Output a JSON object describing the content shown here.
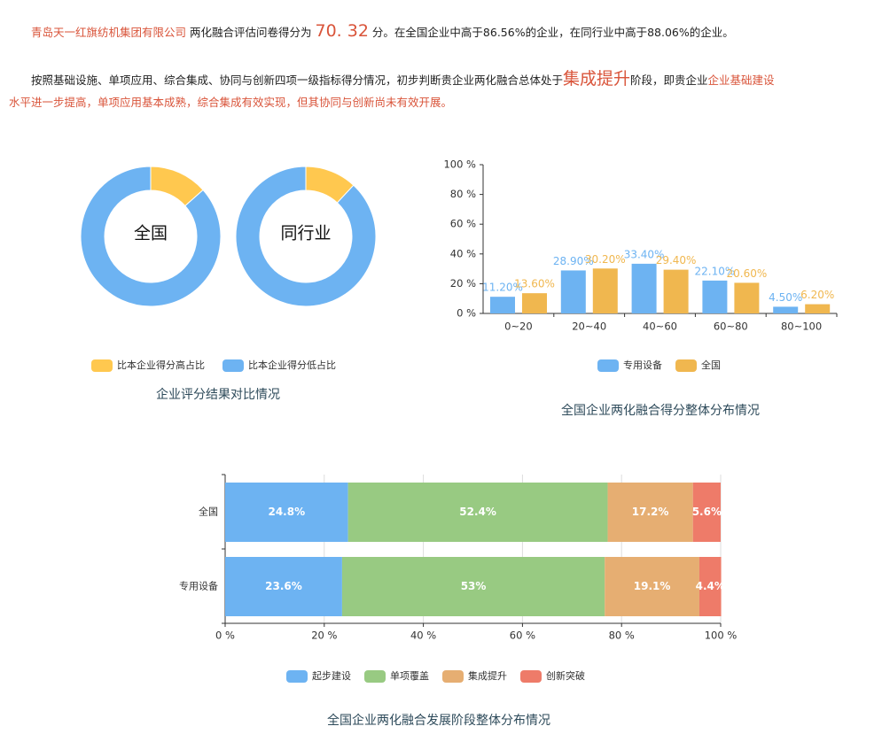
{
  "summary": {
    "company": "青岛天一红旗纺机集团有限公司",
    "text1": "两化融合评估问卷得分为",
    "score": "70. 32",
    "text2": "分。在全国企业中高于86.56%的企业，在同行业中高于88.06%的企业。",
    "text3": "按照基础设施、单项应用、综合集成、协同与创新四项一级指标得分情况，初步判断贵企业两化融合总体处于",
    "stage": "集成提升",
    "text4": "阶段，即贵企业",
    "conclusion_line1": "企业基础建设",
    "conclusion_line2": "水平进一步提高，单项应用基本成熟，综合集成有效实现，但其协同与创新尚未有效开展。"
  },
  "colors": {
    "accent": "#d9543a",
    "blue": "#6db3f2",
    "yellow": "#f0b74f",
    "donut_yellow": "#ffc84f",
    "green": "#98ca82",
    "orange": "#e6ae72",
    "red": "#ee7b69"
  },
  "chart_data": [
    {
      "type": "pie",
      "title": "企业评分结果对比情况",
      "donuts": [
        {
          "label": "全国",
          "values": [
            13.44,
            86.56
          ]
        },
        {
          "label": "同行业",
          "values": [
            11.94,
            88.06
          ]
        }
      ],
      "series_names": [
        "比本企业得分高占比",
        "比本企业得分低占比"
      ],
      "legend": "bottom"
    },
    {
      "type": "bar",
      "title": "全国企业两化融合得分整体分布情况",
      "categories": [
        "0~20",
        "20~40",
        "40~60",
        "60~80",
        "80~100"
      ],
      "series": [
        {
          "name": "专用设备",
          "values": [
            11.2,
            28.9,
            33.4,
            22.1,
            4.5
          ],
          "labels": [
            "11.20%",
            "28.90%",
            "33.40%",
            "22.10%",
            "4.50%"
          ]
        },
        {
          "name": "全国",
          "values": [
            13.6,
            30.2,
            29.4,
            20.6,
            6.2
          ],
          "labels": [
            "13.60%",
            "30.20%",
            "29.40%",
            "20.60%",
            "6.20%"
          ]
        }
      ],
      "yticks": [
        "0 %",
        "20 %",
        "40 %",
        "60 %",
        "80 %",
        "100 %"
      ],
      "ylim": [
        0,
        100
      ],
      "legend": "bottom"
    },
    {
      "type": "bar",
      "orientation": "horizontal-stacked",
      "title": "全国企业两化融合发展阶段整体分布情况",
      "categories": [
        "全国",
        "专用设备"
      ],
      "series": [
        {
          "name": "起步建设",
          "values": [
            24.8,
            23.6
          ]
        },
        {
          "name": "单项覆盖",
          "values": [
            52.4,
            53
          ]
        },
        {
          "name": "集成提升",
          "values": [
            17.2,
            19.1
          ]
        },
        {
          "name": "创新突破",
          "values": [
            5.6,
            4.4
          ]
        }
      ],
      "xticks": [
        "0 %",
        "20 %",
        "40 %",
        "60 %",
        "80 %",
        "100 %"
      ],
      "xlim": [
        0,
        100
      ],
      "grid": true,
      "legend": "bottom"
    }
  ]
}
